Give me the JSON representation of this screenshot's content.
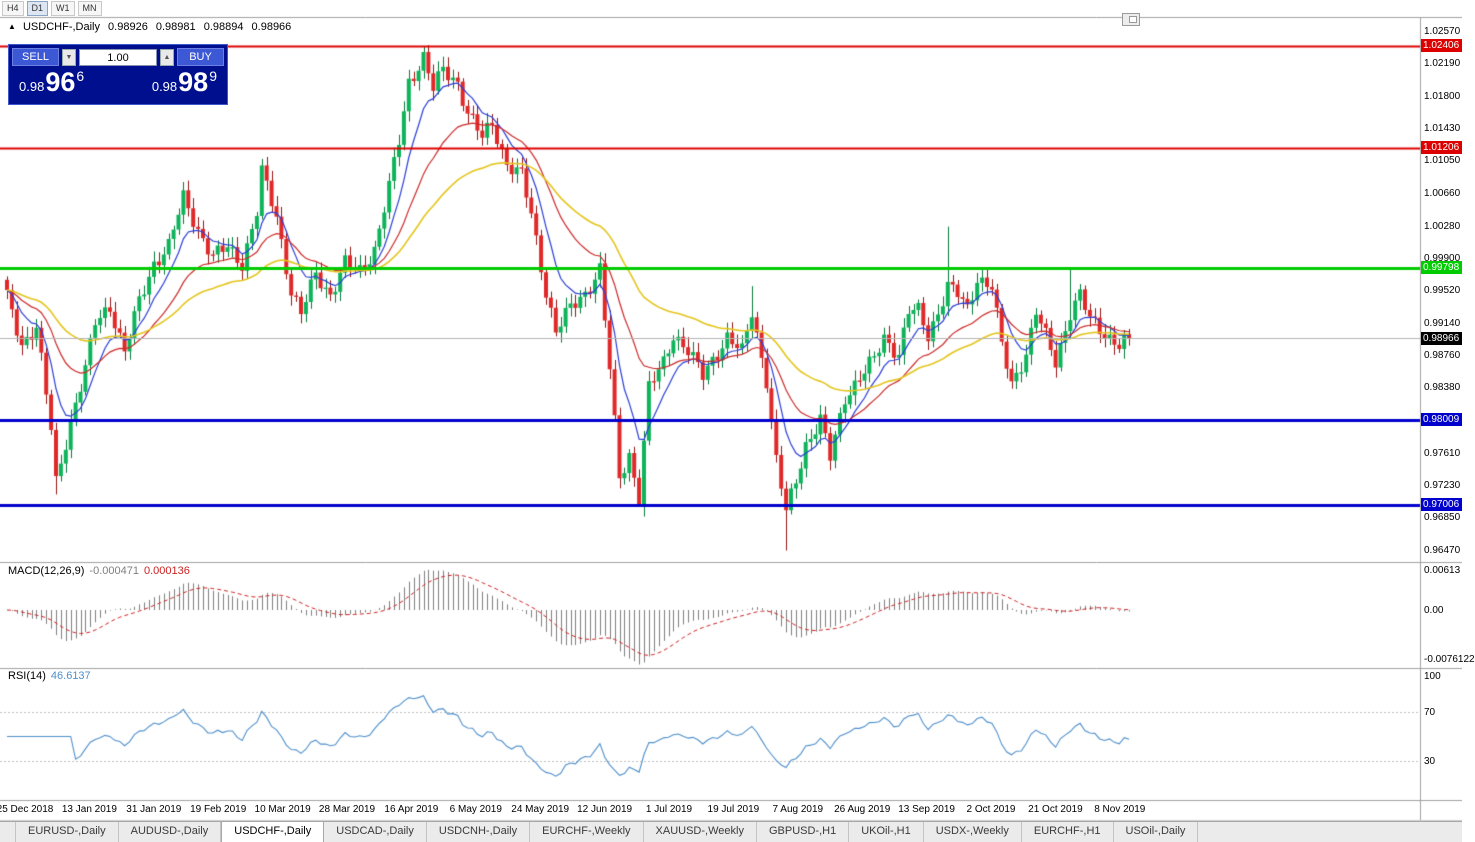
{
  "toolbar": {
    "timeframes": [
      "H4",
      "D1",
      "W1",
      "MN"
    ],
    "active_timeframe": "D1"
  },
  "icons": {
    "collapse_triangle": "▲",
    "spin_down": "▼",
    "spin_up": "▲"
  },
  "chart": {
    "title": "USDCHF-,Daily",
    "ohlc": {
      "open": "0.98926",
      "high": "0.98981",
      "low": "0.98894",
      "close": "0.98966"
    },
    "trade_panel": {
      "sell_label": "SELL",
      "buy_label": "BUY",
      "volume": "1.00",
      "sell_price": {
        "prefix": "0.98",
        "big": "96",
        "pip": "6"
      },
      "buy_price": {
        "prefix": "0.98",
        "big": "98",
        "pip": "9"
      }
    },
    "price_axis_ticks": [
      "1.02570",
      "1.02190",
      "1.01800",
      "1.01430",
      "1.01050",
      "1.00660",
      "1.00280",
      "0.99900",
      "0.99520",
      "0.99140",
      "0.98760",
      "0.98380",
      "0.97610",
      "0.97230",
      "0.96850",
      "0.96470"
    ],
    "levels": [
      {
        "label": "1.02406",
        "price": 1.02406,
        "color": "#dd0000",
        "width": 2
      },
      {
        "label": "1.01206",
        "price": 1.01206,
        "color": "#dd0000",
        "width": 2
      },
      {
        "label": "0.99798",
        "price": 0.99798,
        "color": "#00cc00",
        "width": 3
      },
      {
        "label": "0.98009",
        "price": 0.98009,
        "color": "#0000cc",
        "width": 3
      },
      {
        "label": "0.97006",
        "price": 0.97006,
        "color": "#0000cc",
        "width": 3
      }
    ],
    "bid": {
      "label": "0.98966",
      "price": 0.98966,
      "badge_color": "#000000"
    }
  },
  "macd": {
    "name": "MACD(12,26,9)",
    "value_main": "-0.000471",
    "value_signal": "0.000136",
    "axis_labels": [
      "0.00613",
      "0.00",
      "-0.0076122"
    ]
  },
  "rsi": {
    "name": "RSI(14)",
    "value": "46.6137",
    "axis_labels": [
      "100",
      "70",
      "30"
    ]
  },
  "time_axis": {
    "dates": [
      "25 Dec 2018",
      "13 Jan 2019",
      "31 Jan 2019",
      "19 Feb 2019",
      "10 Mar 2019",
      "28 Mar 2019",
      "16 Apr 2019",
      "6 May 2019",
      "24 May 2019",
      "12 Jun 2019",
      "1 Jul 2019",
      "19 Jul 2019",
      "7 Aug 2019",
      "26 Aug 2019",
      "13 Sep 2019",
      "2 Oct 2019",
      "21 Oct 2019",
      "8 Nov 2019"
    ]
  },
  "tabs": {
    "active_index": 2,
    "items": [
      "EURUSD-,Daily",
      "AUDUSD-,Daily",
      "USDCHF-,Daily",
      "USDCAD-,Daily",
      "USDCNH-,Daily",
      "EURCHF-,Weekly",
      "XAUUSD-,Weekly",
      "GBPUSD-,H1",
      "UKOil-,H1",
      "USDX-,Weekly",
      "EURCHF-,H1",
      "USOil-,Daily"
    ],
    "note": "USDCHF-,Daily is the active chart tab"
  },
  "chart_data": {
    "type": "candlestick",
    "symbol": "USDCHF",
    "timeframe": "Daily",
    "title": "USDCHF-,Daily 0.98926 0.98981 0.98894 0.98966",
    "price_axis_range": {
      "top": 1.0257,
      "bottom": 0.9647
    },
    "date_range": [
      "25 Dec 2018",
      "8 Nov 2019"
    ],
    "candle_count": 230,
    "up_color": "#0db45a",
    "down_color": "#e02828",
    "ma_lines": [
      {
        "period": 8,
        "color": "#2b3fd6"
      },
      {
        "period": 21,
        "color": "#cc2a2a"
      },
      {
        "period": 45,
        "color": "#e3c51d"
      }
    ],
    "close_waypoints": [
      [
        0,
        0.9945
      ],
      [
        3,
        0.989
      ],
      [
        6,
        0.991
      ],
      [
        9,
        0.979
      ],
      [
        10,
        0.9727
      ],
      [
        13,
        0.98
      ],
      [
        16,
        0.986
      ],
      [
        18,
        0.9915
      ],
      [
        21,
        0.9935
      ],
      [
        24,
        0.988
      ],
      [
        27,
        0.994
      ],
      [
        30,
        0.9985
      ],
      [
        33,
        1.0005
      ],
      [
        36,
        1.0062
      ],
      [
        39,
        1.0025
      ],
      [
        42,
        0.9992
      ],
      [
        45,
        1.0004
      ],
      [
        48,
        0.9985
      ],
      [
        51,
        1.0045
      ],
      [
        52,
        1.0092
      ],
      [
        55,
        1.004
      ],
      [
        58,
        0.9952
      ],
      [
        60,
        0.9925
      ],
      [
        63,
        0.9972
      ],
      [
        66,
        0.9948
      ],
      [
        69,
        0.9985
      ],
      [
        72,
        0.9975
      ],
      [
        75,
        1.0002
      ],
      [
        78,
        1.0075
      ],
      [
        80,
        1.0128
      ],
      [
        82,
        1.0198
      ],
      [
        85,
        1.0228
      ],
      [
        87,
        1.019
      ],
      [
        89,
        1.0212
      ],
      [
        92,
        1.0198
      ],
      [
        94,
        1.0162
      ],
      [
        97,
        1.0132
      ],
      [
        99,
        1.015
      ],
      [
        102,
        1.0102
      ],
      [
        105,
        1.0088
      ],
      [
        107,
        1.0042
      ],
      [
        110,
        0.9952
      ],
      [
        112,
        0.9905
      ],
      [
        115,
        0.9932
      ],
      [
        118,
        0.995
      ],
      [
        121,
        0.9978
      ],
      [
        123,
        0.986
      ],
      [
        125,
        0.9732
      ],
      [
        127,
        0.976
      ],
      [
        129,
        0.9708
      ],
      [
        131,
        0.9838
      ],
      [
        134,
        0.9868
      ],
      [
        136,
        0.9902
      ],
      [
        139,
        0.9882
      ],
      [
        142,
        0.9852
      ],
      [
        144,
        0.9872
      ],
      [
        147,
        0.9898
      ],
      [
        150,
        0.988
      ],
      [
        152,
        0.9928
      ],
      [
        155,
        0.9848
      ],
      [
        157,
        0.9752
      ],
      [
        159,
        0.9692
      ],
      [
        161,
        0.973
      ],
      [
        163,
        0.9772
      ],
      [
        166,
        0.98
      ],
      [
        168,
        0.9756
      ],
      [
        171,
        0.9828
      ],
      [
        174,
        0.985
      ],
      [
        177,
        0.9872
      ],
      [
        179,
        0.9898
      ],
      [
        182,
        0.9878
      ],
      [
        184,
        0.9928
      ],
      [
        186,
        0.9928
      ],
      [
        188,
        0.99
      ],
      [
        190,
        0.9928
      ],
      [
        192,
        0.9958
      ],
      [
        194,
        0.9948
      ],
      [
        196,
        0.993
      ],
      [
        198,
        0.9968
      ],
      [
        201,
        0.9958
      ],
      [
        203,
        0.9888
      ],
      [
        205,
        0.9842
      ],
      [
        208,
        0.988
      ],
      [
        210,
        0.9928
      ],
      [
        212,
        0.9898
      ],
      [
        214,
        0.9868
      ],
      [
        217,
        0.9928
      ],
      [
        219,
        0.9948
      ],
      [
        221,
        0.9918
      ],
      [
        224,
        0.9902
      ],
      [
        227,
        0.989
      ],
      [
        229,
        0.98966
      ]
    ],
    "wick_spikes": [
      {
        "i": 10,
        "low": 0.9713
      },
      {
        "i": 85,
        "high": 1.024
      },
      {
        "i": 121,
        "high": 0.9998
      },
      {
        "i": 129,
        "low": 0.97
      },
      {
        "i": 152,
        "high": 0.9958
      },
      {
        "i": 159,
        "low": 0.9647
      },
      {
        "i": 192,
        "high": 1.0028
      },
      {
        "i": 217,
        "high": 0.9978
      }
    ],
    "indicators": [
      {
        "name": "MACD",
        "params": [
          12,
          26,
          9
        ],
        "values": [
          -0.000471,
          0.000136
        ],
        "axis": [
          0.00613,
          0.0,
          -0.0076122
        ]
      },
      {
        "name": "RSI",
        "params": [
          14
        ],
        "value": 46.6137,
        "levels": [
          70,
          30
        ]
      }
    ]
  }
}
